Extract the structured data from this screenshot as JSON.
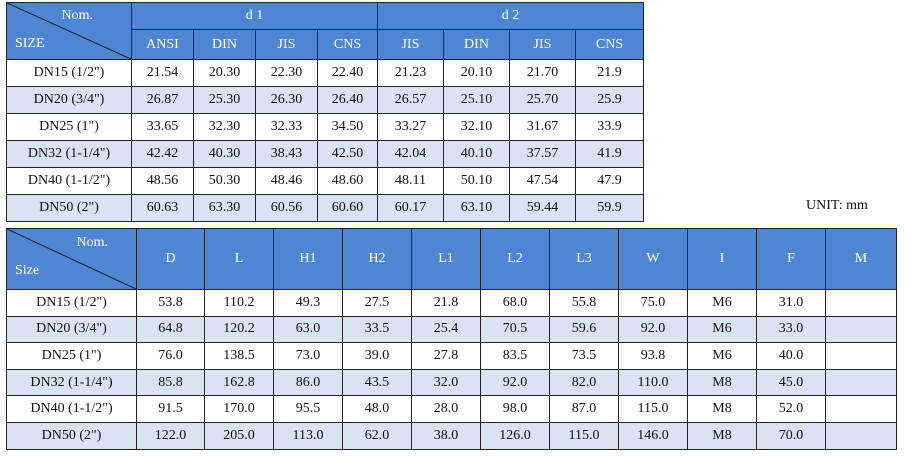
{
  "table1": {
    "corner_top": "Nom.",
    "corner_bottom": "SIZE",
    "group_d1": "d 1",
    "group_d2": "d 2",
    "sub_d1": [
      "ANSI",
      "DIN",
      "JIS",
      "CNS"
    ],
    "sub_d2": [
      "JIS",
      "DIN",
      "JIS",
      "CNS"
    ],
    "rows": [
      {
        "size": "DN15 (1/2\")",
        "d1": [
          "21.54",
          "20.30",
          "22.30",
          "22.40"
        ],
        "d2": [
          "21.23",
          "20.10",
          "21.70",
          "21.9"
        ]
      },
      {
        "size": "DN20 (3/4\")",
        "d1": [
          "26.87",
          "25.30",
          "26.30",
          "26.40"
        ],
        "d2": [
          "26.57",
          "25.10",
          "25.70",
          "25.9"
        ]
      },
      {
        "size": "DN25 (1\")",
        "d1": [
          "33.65",
          "32.30",
          "32.33",
          "34.50"
        ],
        "d2": [
          "33.27",
          "32.10",
          "31.67",
          "33.9"
        ]
      },
      {
        "size": "DN32 (1-1/4\")",
        "d1": [
          "42.42",
          "40.30",
          "38.43",
          "42.50"
        ],
        "d2": [
          "42.04",
          "40.10",
          "37.57",
          "41.9"
        ]
      },
      {
        "size": "DN40 (1-1/2\")",
        "d1": [
          "48.56",
          "50.30",
          "48.46",
          "48.60"
        ],
        "d2": [
          "48.11",
          "50.10",
          "47.54",
          "47.9"
        ]
      },
      {
        "size": "DN50 (2\")",
        "d1": [
          "60.63",
          "63.30",
          "60.56",
          "60.60"
        ],
        "d2": [
          "60.17",
          "63.10",
          "59.44",
          "59.9"
        ]
      }
    ]
  },
  "unit_label": "UNIT: mm",
  "table2": {
    "corner_top": "Nom.",
    "corner_bottom": "Size",
    "headers": [
      "D",
      "L",
      "H1",
      "H2",
      "L1",
      "L2",
      "L3",
      "W",
      "I",
      "F",
      "M"
    ],
    "rows": [
      {
        "size": "DN15 (1/2\")",
        "values": [
          "53.8",
          "110.2",
          "49.3",
          "27.5",
          "21.8",
          "68.0",
          "55.8",
          "75.0",
          "M6",
          "31.0",
          ""
        ]
      },
      {
        "size": "DN20 (3/4\")",
        "values": [
          "64.8",
          "120.2",
          "63.0",
          "33.5",
          "25.4",
          "70.5",
          "59.6",
          "92.0",
          "M6",
          "33.0",
          ""
        ]
      },
      {
        "size": "DN25 (1\")",
        "values": [
          "76.0",
          "138.5",
          "73.0",
          "39.0",
          "27.8",
          "83.5",
          "73.5",
          "93.8",
          "M6",
          "40.0",
          ""
        ]
      },
      {
        "size": "DN32 (1-1/4\")",
        "values": [
          "85.8",
          "162.8",
          "86.0",
          "43.5",
          "32.0",
          "92.0",
          "82.0",
          "110.0",
          "M8",
          "45.0",
          ""
        ]
      },
      {
        "size": "DN40 (1-1/2\")",
        "values": [
          "91.5",
          "170.0",
          "95.5",
          "48.0",
          "28.0",
          "98.0",
          "87.0",
          "115.0",
          "M8",
          "52.0",
          ""
        ]
      },
      {
        "size": "DN50 (2\")",
        "values": [
          "122.0",
          "205.0",
          "113.0",
          "62.0",
          "38.0",
          "126.0",
          "115.0",
          "146.0",
          "M8",
          "70.0",
          ""
        ]
      }
    ]
  },
  "colors": {
    "header_bg": "#4f86d4",
    "alt_row_bg": "#d9e3f3",
    "border": "#222222"
  }
}
